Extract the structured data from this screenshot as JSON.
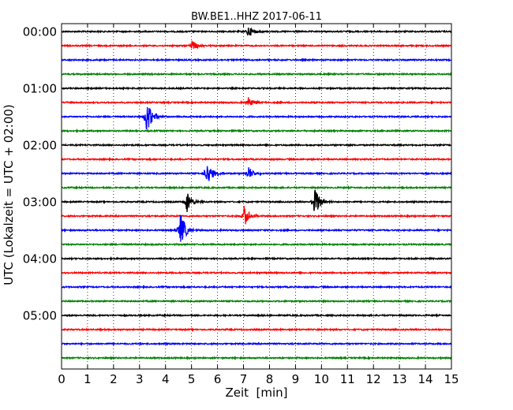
{
  "chart_data": {
    "type": "line",
    "title": "BW.BE1..HHZ 2017-06-11",
    "xlabel": "Zeit  [min]",
    "ylabel": "UTC (Lokalzeit = UTC + 02:00)",
    "xlim": [
      0,
      15
    ],
    "x_ticks": [
      "0",
      "1",
      "2",
      "3",
      "4",
      "5",
      "6",
      "7",
      "8",
      "9",
      "10",
      "11",
      "12",
      "13",
      "14",
      "15"
    ],
    "y_tick_labels": [
      "00:00",
      "01:00",
      "02:00",
      "03:00",
      "04:00",
      "05:00"
    ],
    "grid": {
      "x": true,
      "y": false,
      "style": "dotted"
    },
    "trace_interval_minutes": 15,
    "trace_colors": [
      "#000000",
      "#ff0000",
      "#0000ff",
      "#008000"
    ],
    "traces": [
      {
        "start": "00:00",
        "events": [
          {
            "minute": 7.15,
            "amplitude": 0.5
          }
        ]
      },
      {
        "start": "00:15",
        "events": [
          {
            "minute": 5.0,
            "amplitude": 0.45
          }
        ]
      },
      {
        "start": "00:30",
        "events": []
      },
      {
        "start": "00:45",
        "events": []
      },
      {
        "start": "01:00",
        "events": []
      },
      {
        "start": "01:15",
        "events": [
          {
            "minute": 7.15,
            "amplitude": 0.5
          }
        ]
      },
      {
        "start": "01:30",
        "events": [
          {
            "minute": 3.25,
            "amplitude": 1.4
          }
        ]
      },
      {
        "start": "01:45",
        "events": []
      },
      {
        "start": "02:00",
        "events": []
      },
      {
        "start": "02:15",
        "events": []
      },
      {
        "start": "02:30",
        "events": [
          {
            "minute": 5.55,
            "amplitude": 1.2
          },
          {
            "minute": 7.15,
            "amplitude": 0.7
          }
        ]
      },
      {
        "start": "02:45",
        "events": []
      },
      {
        "start": "03:00",
        "events": [
          {
            "minute": 4.8,
            "amplitude": 0.95
          },
          {
            "minute": 9.7,
            "amplitude": 1.45
          }
        ]
      },
      {
        "start": "03:15",
        "events": [
          {
            "minute": 7.0,
            "amplitude": 0.9
          }
        ]
      },
      {
        "start": "03:30",
        "events": [
          {
            "minute": 4.55,
            "amplitude": 1.4
          }
        ]
      },
      {
        "start": "03:45",
        "events": []
      },
      {
        "start": "04:00",
        "events": []
      },
      {
        "start": "04:15",
        "events": []
      },
      {
        "start": "04:30",
        "events": []
      },
      {
        "start": "04:45",
        "events": []
      },
      {
        "start": "05:00",
        "events": []
      },
      {
        "start": "05:15",
        "events": []
      },
      {
        "start": "05:30",
        "events": []
      },
      {
        "start": "05:45",
        "events": []
      }
    ]
  }
}
